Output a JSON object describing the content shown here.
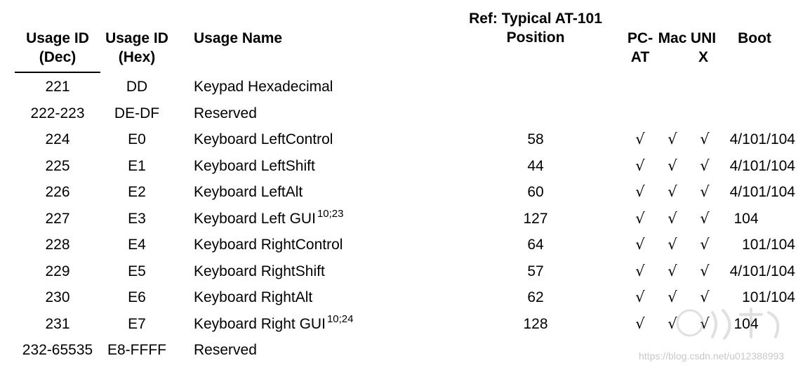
{
  "headers": {
    "usage_id_dec": "Usage ID\n(Dec)",
    "usage_id_hex": "Usage ID\n(Hex)",
    "usage_name": "Usage Name",
    "ref_position": "Ref: Typical AT-101\nPosition",
    "pc_at": "PC-\nAT",
    "mac": "Mac",
    "unix": "UNI\nX",
    "boot": "Boot"
  },
  "check_glyph": "√",
  "rows": [
    {
      "dec": "221",
      "hex": "DD",
      "name": "Keypad Hexadecimal",
      "sup": "",
      "pos": "",
      "pc": "",
      "mac": "",
      "unix": "",
      "boot": ""
    },
    {
      "dec": "222-223",
      "hex": "DE-DF",
      "name": "Reserved",
      "sup": "",
      "pos": "",
      "pc": "",
      "mac": "",
      "unix": "",
      "boot": ""
    },
    {
      "dec": "224",
      "hex": "E0",
      "name": "Keyboard LeftControl",
      "sup": "",
      "pos": "58",
      "pc": "√",
      "mac": "√",
      "unix": "√",
      "boot": "4/101/104"
    },
    {
      "dec": "225",
      "hex": "E1",
      "name": "Keyboard LeftShift",
      "sup": "",
      "pos": "44",
      "pc": "√",
      "mac": "√",
      "unix": "√",
      "boot": "4/101/104"
    },
    {
      "dec": "226",
      "hex": "E2",
      "name": "Keyboard LeftAlt",
      "sup": "",
      "pos": "60",
      "pc": "√",
      "mac": "√",
      "unix": "√",
      "boot": "4/101/104"
    },
    {
      "dec": "227",
      "hex": "E3",
      "name": "Keyboard Left GUI",
      "sup": "10;23",
      "pos": "127",
      "pc": "√",
      "mac": "√",
      "unix": "√",
      "boot": "104"
    },
    {
      "dec": "228",
      "hex": "E4",
      "name": "Keyboard RightControl",
      "sup": "",
      "pos": "64",
      "pc": "√",
      "mac": "√",
      "unix": "√",
      "boot": "101/104"
    },
    {
      "dec": "229",
      "hex": "E5",
      "name": "Keyboard RightShift",
      "sup": "",
      "pos": "57",
      "pc": "√",
      "mac": "√",
      "unix": "√",
      "boot": "4/101/104"
    },
    {
      "dec": "230",
      "hex": "E6",
      "name": "Keyboard RightAlt",
      "sup": "",
      "pos": "62",
      "pc": "√",
      "mac": "√",
      "unix": "√",
      "boot": "101/104"
    },
    {
      "dec": "231",
      "hex": "E7",
      "name": "Keyboard Right GUI",
      "sup": "10;24",
      "pos": "128",
      "pc": "√",
      "mac": "√",
      "unix": "√",
      "boot": "104"
    },
    {
      "dec": "232-65535",
      "hex": "E8-FFFF",
      "name": "Reserved",
      "sup": "",
      "pos": "",
      "pc": "",
      "mac": "",
      "unix": "",
      "boot": ""
    }
  ],
  "watermark": "https://blog.csdn.net/u012388993"
}
